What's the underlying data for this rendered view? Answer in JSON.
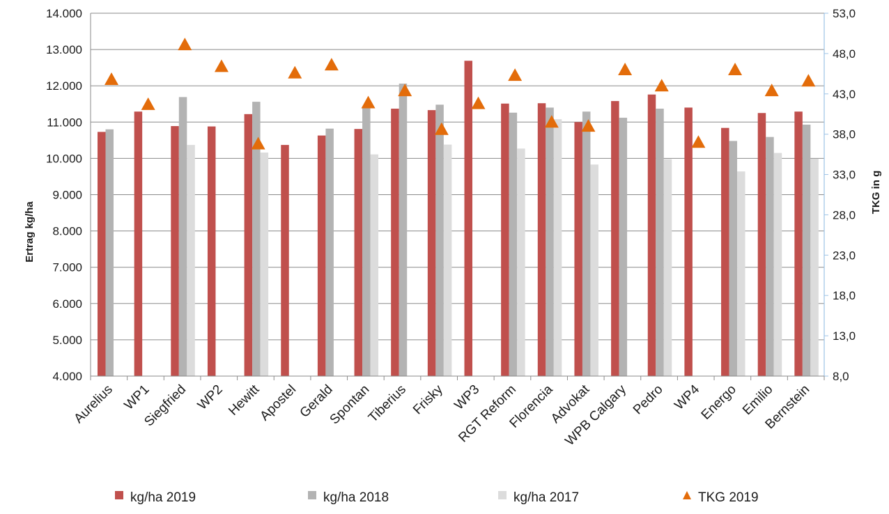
{
  "chart_data": {
    "type": "bar",
    "categories": [
      "Aurelius",
      "WP1",
      "Siegfried",
      "WP2",
      "Hewitt",
      "Apostel",
      "Gerald",
      "Spontan",
      "Tiberius",
      "Frisky",
      "WP3",
      "RGT Reform",
      "Florencia",
      "Advokat",
      "WPB Calgary",
      "Pedro",
      "WP4",
      "Energo",
      "Emilio",
      "Bernstein"
    ],
    "series": [
      {
        "name": "kg/ha 2019",
        "color": "#c0504d",
        "values": [
          10730,
          11290,
          10890,
          10880,
          11220,
          10370,
          10630,
          10810,
          11370,
          11330,
          12690,
          11510,
          11520,
          11000,
          11580,
          11760,
          11400,
          10840,
          11250,
          11290
        ]
      },
      {
        "name": "kg/ha 2018",
        "color": "#b3b3b3",
        "values": [
          10800,
          null,
          11690,
          null,
          11560,
          null,
          10820,
          11400,
          12060,
          11480,
          null,
          11260,
          11400,
          11290,
          11120,
          11370,
          null,
          10480,
          10590,
          10930
        ]
      },
      {
        "name": "kg/ha 2017",
        "color": "#dcdcdc",
        "values": [
          null,
          null,
          10370,
          null,
          10160,
          null,
          null,
          10110,
          null,
          10380,
          null,
          10270,
          11080,
          9830,
          null,
          9980,
          null,
          9640,
          10150,
          9990
        ]
      },
      {
        "name": "TKG 2019",
        "color": "#e36c0a",
        "axis": "right",
        "marker": "triangle",
        "values": [
          44.8,
          41.7,
          49.1,
          46.4,
          36.8,
          45.6,
          46.6,
          41.9,
          43.4,
          38.6,
          41.8,
          45.3,
          39.5,
          39.0,
          46.0,
          44.0,
          37.0,
          46.0,
          43.4,
          44.6
        ]
      }
    ],
    "yleft": {
      "label": "Ertrag kg/ha",
      "ylim": [
        4000,
        14000
      ],
      "ticks": [
        "4.000",
        "5.000",
        "6.000",
        "7.000",
        "8.000",
        "9.000",
        "10.000",
        "11.000",
        "12.000",
        "13.000",
        "14.000"
      ]
    },
    "yright": {
      "label": "TKG in g",
      "ylim": [
        8,
        53
      ],
      "ticks": [
        "8,0",
        "13,0",
        "18,0",
        "23,0",
        "28,0",
        "33,0",
        "38,0",
        "43,0",
        "48,0",
        "53,0"
      ]
    },
    "grid": true,
    "legend_position": "bottom"
  }
}
